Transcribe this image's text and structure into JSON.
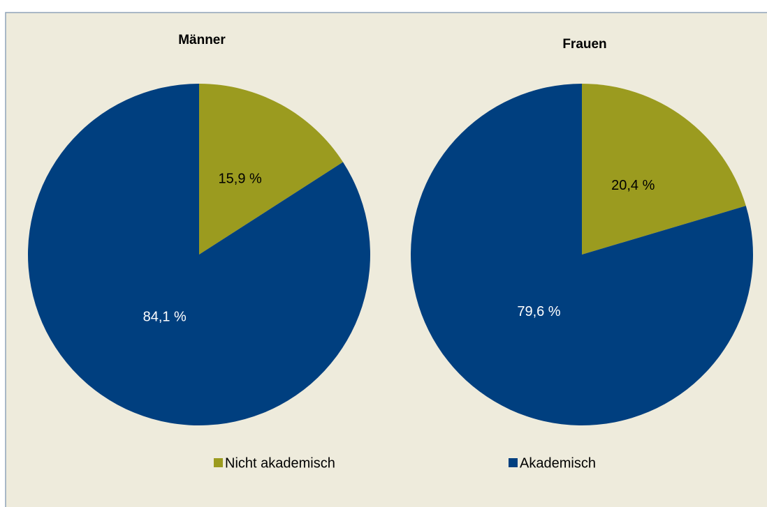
{
  "chart_data": [
    {
      "type": "pie",
      "title": "Männer",
      "categories": [
        "Nicht akademisch",
        "Akademisch"
      ],
      "values": [
        15.9,
        84.1
      ],
      "value_labels": [
        "15,9 %",
        "84,1 %"
      ],
      "colors": [
        "#9b9b1f",
        "#003f7f"
      ],
      "legend": "bottom"
    },
    {
      "type": "pie",
      "title": "Frauen",
      "categories": [
        "Nicht akademisch",
        "Akademisch"
      ],
      "values": [
        20.4,
        79.6
      ],
      "value_labels": [
        "20,4 %",
        "79,6 %"
      ],
      "colors": [
        "#9b9b1f",
        "#003f7f"
      ],
      "legend": "bottom"
    }
  ]
}
